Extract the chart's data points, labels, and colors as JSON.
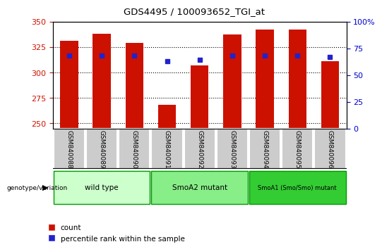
{
  "title": "GDS4495 / 100093652_TGI_at",
  "samples": [
    "GSM840088",
    "GSM840089",
    "GSM840090",
    "GSM840091",
    "GSM840092",
    "GSM840093",
    "GSM840094",
    "GSM840095",
    "GSM840096"
  ],
  "counts": [
    331,
    338,
    329,
    268,
    307,
    337,
    342,
    342,
    311
  ],
  "percentile_ranks": [
    68,
    68,
    68,
    63,
    64,
    68,
    68,
    68,
    67
  ],
  "ylim_left": [
    245,
    350
  ],
  "ylim_right": [
    0,
    100
  ],
  "yticks_left": [
    250,
    275,
    300,
    325,
    350
  ],
  "yticks_right": [
    0,
    25,
    50,
    75,
    100
  ],
  "bar_color": "#cc1100",
  "dot_color": "#2222cc",
  "bar_width": 0.55,
  "groups": [
    {
      "label": "wild type",
      "n": 3,
      "color": "#ccffcc"
    },
    {
      "label": "SmoA2 mutant",
      "n": 3,
      "color": "#88ee88"
    },
    {
      "label": "SmoA1 (Smo/Smo) mutant",
      "n": 3,
      "color": "#33cc33"
    }
  ],
  "legend_count_label": "count",
  "legend_pct_label": "percentile rank within the sample",
  "genotype_label": "genotype/variation",
  "right_axis_label_color": "#0000cc",
  "left_axis_label_color": "#cc1100",
  "sample_box_color": "#cccccc",
  "group_border_color": "#009900"
}
